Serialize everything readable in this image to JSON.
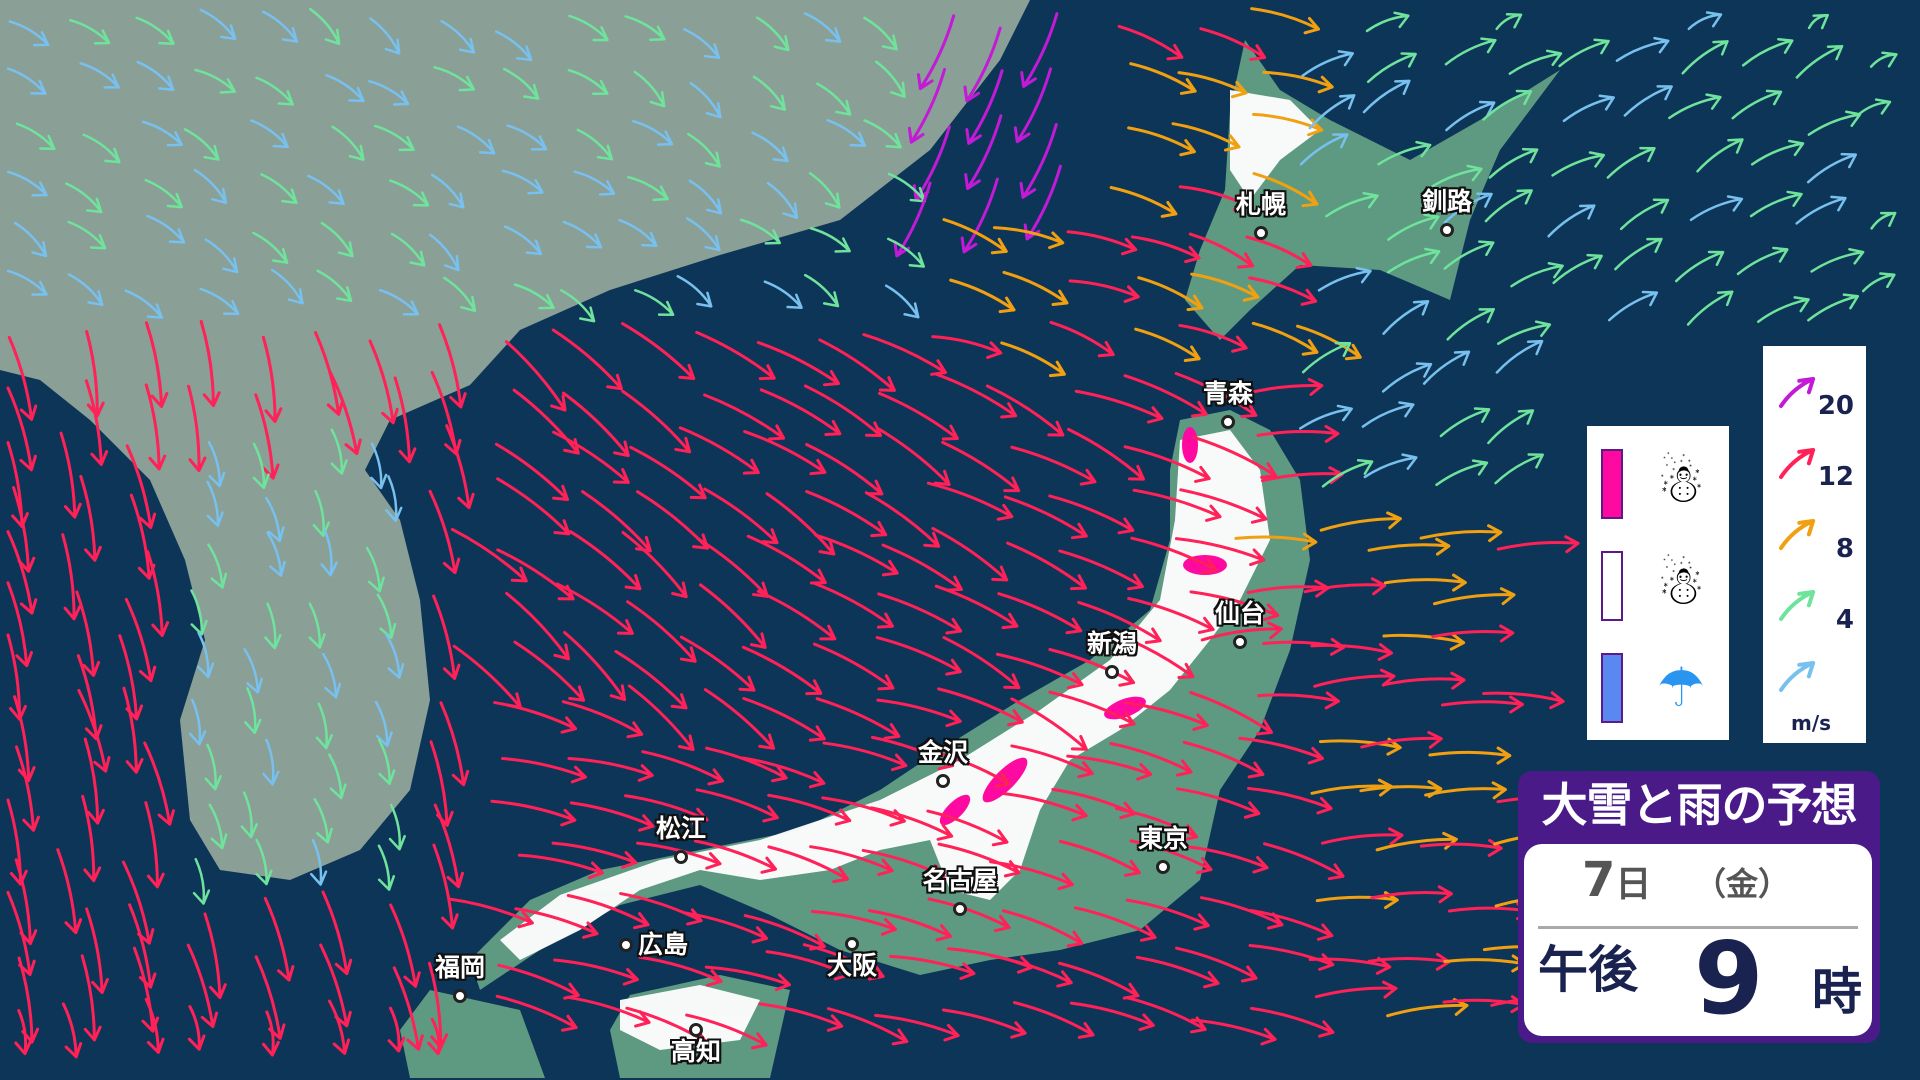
{
  "title": {
    "heading": "大雪と雨の予想",
    "day": "7",
    "day_unit": "日",
    "weekday": "（金）",
    "ampm": "午後",
    "hour": "9",
    "hour_unit": "時"
  },
  "cities": [
    {
      "name": "札幌"
    },
    {
      "name": "釧路"
    },
    {
      "name": "青森"
    },
    {
      "name": "仙台"
    },
    {
      "name": "新潟"
    },
    {
      "name": "金沢"
    },
    {
      "name": "東京"
    },
    {
      "name": "名古屋"
    },
    {
      "name": "大阪"
    },
    {
      "name": "松江"
    },
    {
      "name": "広島"
    },
    {
      "name": "福岡"
    },
    {
      "name": "高知"
    }
  ],
  "precip_legend": [
    {
      "type": "heavy-snow",
      "color": "#ff0aa0",
      "icon": "snowman-with-snowflakes-icon"
    },
    {
      "type": "snow",
      "color": "#ffffff",
      "icon": "snowman-icon"
    },
    {
      "type": "rain",
      "color": "#5b87f0",
      "icon": "umbrella-icon"
    }
  ],
  "wind_legend": {
    "unit": "m/s",
    "thresholds": [
      "20",
      "12",
      "8",
      "4"
    ],
    "colors": [
      "#c21ad6",
      "#ff2157",
      "#f0a010",
      "#6fe39c",
      "#78c0ee"
    ]
  },
  "colors": {
    "sea": "#0d3558",
    "continent": "#8a9f95",
    "japan_land": "#5e9a82",
    "snow_cover": "#ffffff",
    "heavy_snow": "#ff0aa0"
  }
}
